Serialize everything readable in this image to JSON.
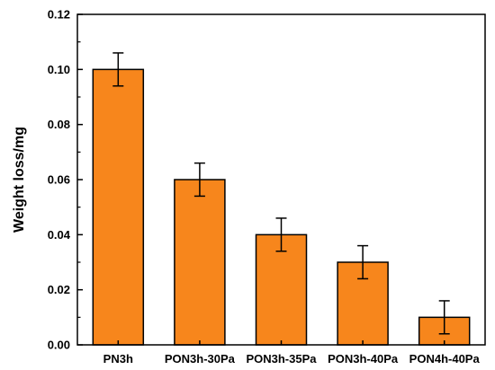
{
  "chart_data": {
    "type": "bar",
    "categories": [
      "PN3h",
      "PON3h-30Pa",
      "PON3h-35Pa",
      "PON3h-40Pa",
      "PON4h-40Pa"
    ],
    "values": [
      0.1,
      0.06,
      0.04,
      0.03,
      0.01
    ],
    "errors": [
      0.006,
      0.006,
      0.006,
      0.006,
      0.006
    ],
    "title": "",
    "xlabel": "",
    "ylabel": "Weight loss/mg",
    "ylim": [
      0,
      0.12
    ],
    "yticks": [
      "0.00",
      "0.02",
      "0.04",
      "0.06",
      "0.08",
      "0.10",
      "0.12"
    ],
    "grid": false,
    "bar_color": "#F7861C",
    "edge_color": "#000000"
  }
}
